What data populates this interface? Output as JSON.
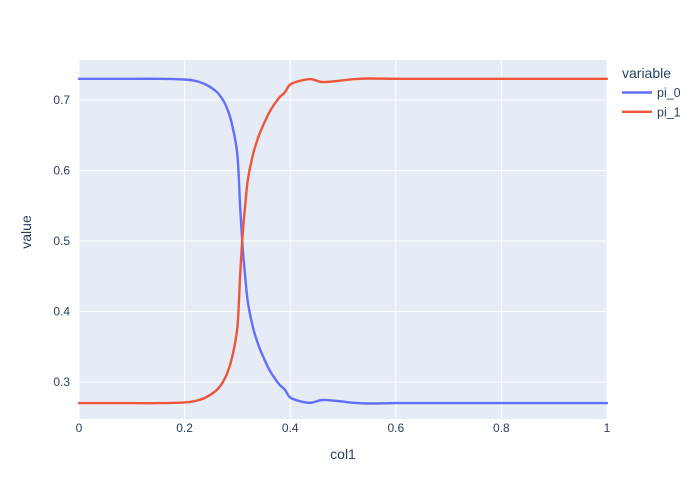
{
  "figure": {
    "background_color": "#ffffff",
    "plot_background_color": "#e5ecf6",
    "grid_color": "#ffffff",
    "text_color": "#2a3f5f"
  },
  "chart_data": {
    "type": "line",
    "title": "",
    "xlabel": "col1",
    "ylabel": "value",
    "xlim": [
      0,
      1
    ],
    "ylim": [
      0.2475,
      0.7567
    ],
    "grid": true,
    "legend": {
      "title": "variable",
      "position": "right-top"
    },
    "x_tick_labels": [
      "0",
      "0.2",
      "0.4",
      "0.6",
      "0.8",
      "1"
    ],
    "x_tick_values": [
      0,
      0.2,
      0.4,
      0.6,
      0.8,
      1
    ],
    "y_tick_labels": [
      "0.3",
      "0.4",
      "0.5",
      "0.6",
      "0.7"
    ],
    "y_tick_values": [
      0.3,
      0.4,
      0.5,
      0.6,
      0.7
    ],
    "x": [
      0,
      0.05,
      0.1,
      0.15,
      0.2,
      0.22,
      0.24,
      0.26,
      0.27,
      0.28,
      0.29,
      0.3,
      0.305,
      0.31,
      0.315,
      0.32,
      0.33,
      0.34,
      0.35,
      0.36,
      0.37,
      0.38,
      0.39,
      0.4,
      0.42,
      0.44,
      0.46,
      0.49,
      0.52,
      0.55,
      0.6,
      0.65,
      0.7,
      0.75,
      0.8,
      0.85,
      0.9,
      0.95,
      1.0
    ],
    "series": [
      {
        "name": "pi_0",
        "color": "#636efa",
        "values": [
          0.73,
          0.73,
          0.73,
          0.73,
          0.729,
          0.727,
          0.722,
          0.712,
          0.703,
          0.689,
          0.665,
          0.622,
          0.552,
          0.49,
          0.448,
          0.412,
          0.376,
          0.352,
          0.334,
          0.318,
          0.306,
          0.296,
          0.289,
          0.278,
          0.2725,
          0.2705,
          0.2745,
          0.273,
          0.2705,
          0.2695,
          0.27,
          0.27,
          0.27,
          0.27,
          0.27,
          0.27,
          0.27,
          0.27,
          0.27
        ]
      },
      {
        "name": "pi_1",
        "color": "#ef553b",
        "values": [
          0.27,
          0.27,
          0.27,
          0.27,
          0.271,
          0.273,
          0.278,
          0.288,
          0.297,
          0.311,
          0.335,
          0.378,
          0.448,
          0.51,
          0.552,
          0.588,
          0.624,
          0.648,
          0.666,
          0.682,
          0.694,
          0.704,
          0.711,
          0.722,
          0.7275,
          0.7295,
          0.7255,
          0.727,
          0.7295,
          0.7305,
          0.73,
          0.73,
          0.73,
          0.73,
          0.73,
          0.73,
          0.73,
          0.73,
          0.73
        ]
      }
    ]
  }
}
